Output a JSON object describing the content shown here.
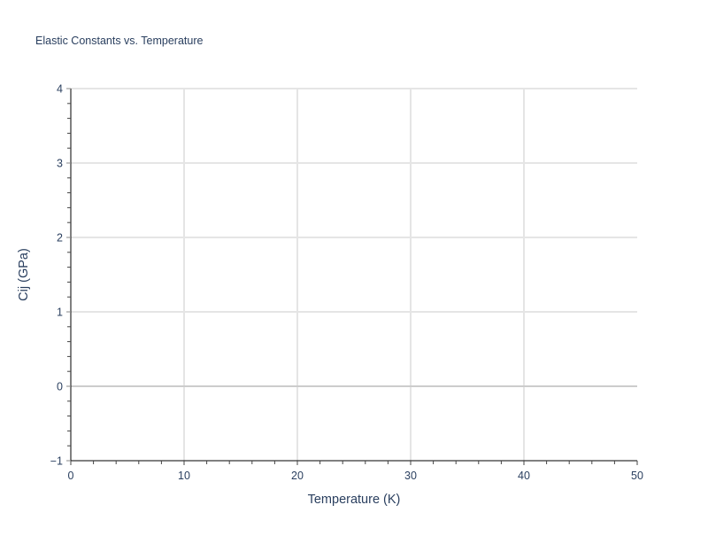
{
  "chart_data": {
    "type": "line",
    "title": "Elastic Constants vs. Temperature",
    "xlabel": "Temperature (K)",
    "ylabel": "Cij (GPa)",
    "xlim": [
      0,
      50
    ],
    "ylim": [
      -1,
      4
    ],
    "xticks": [
      "0",
      "10",
      "20",
      "30",
      "40",
      "50"
    ],
    "yticks": [
      "−1",
      "0",
      "1",
      "2",
      "3",
      "4"
    ],
    "x_minor_step": 2,
    "y_minor_step": 0.2,
    "grid": true,
    "series": []
  },
  "colors": {
    "text": "#2a3f5f",
    "grid": "#e5e5e5",
    "zeroline": "#cccccc",
    "axis": "#000000"
  }
}
